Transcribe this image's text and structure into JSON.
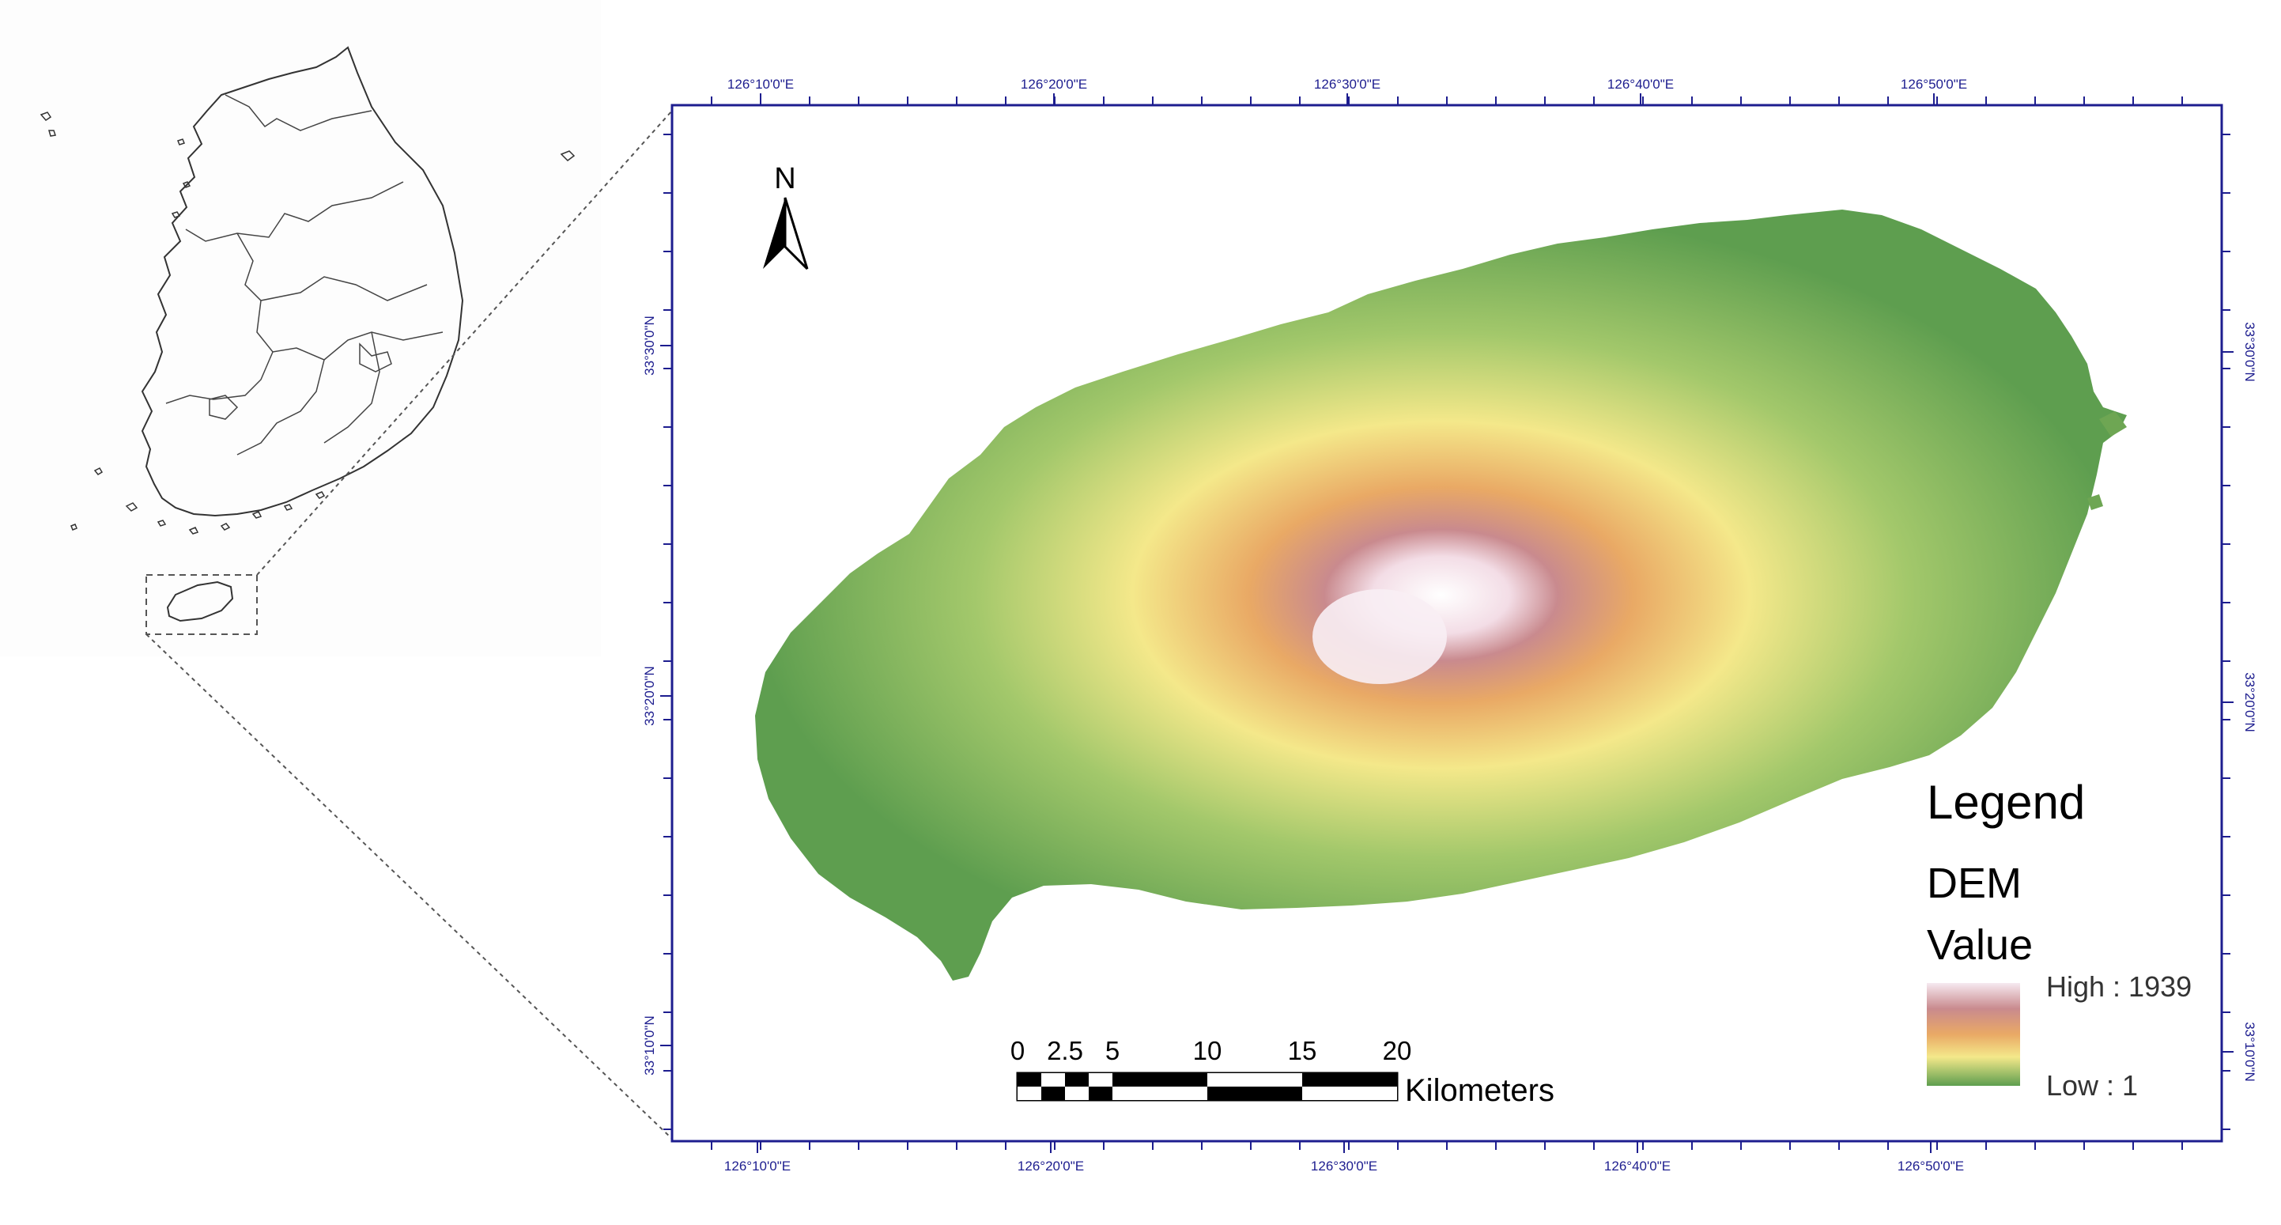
{
  "colors": {
    "frame": "#1d1d8f",
    "tick_label": "#1d1d8f",
    "dem_low": "#5e9e4f",
    "dem_mid": "#f4e88a",
    "dem_orange": "#e9a965",
    "dem_pink": "#c98a8e",
    "dem_high": "#ffffff",
    "outline": "#333333"
  },
  "map": {
    "graticule": {
      "top": [
        "126°10'0\"E",
        "126°20'0\"E",
        "126°30'0\"E",
        "126°40'0\"E",
        "126°50'0\"E"
      ],
      "bottom": [
        "126°10'0\"E",
        "126°20'0\"E",
        "126°30'0\"E",
        "126°40'0\"E",
        "126°50'0\"E"
      ],
      "left": [
        "33°30'0\"N",
        "33°20'0\"N",
        "33°10'0\"N"
      ],
      "right": [
        "33°30'0\"N",
        "33°20'0\"N",
        "33°10'0\"N"
      ]
    },
    "north_arrow": {
      "label": "N",
      "icon": "north-arrow-icon"
    },
    "scale_bar": {
      "ticks": [
        "0",
        "2.5",
        "5",
        "10",
        "15",
        "20"
      ],
      "unit": "Kilometers"
    },
    "legend": {
      "title": "Legend",
      "layer": "DEM",
      "field": "Value",
      "high_label": "High : 1939",
      "low_label": "Low : 1",
      "high_value": 1939,
      "low_value": 1
    }
  }
}
